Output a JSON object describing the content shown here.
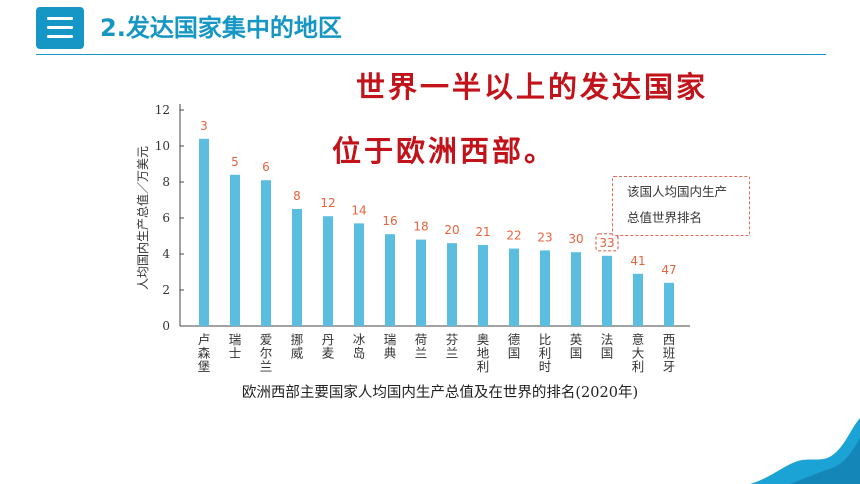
{
  "header": {
    "icon": "list-icon",
    "title": "2.发达国家集中的地区"
  },
  "callout": {
    "line1": "世界一半以上的发达国家",
    "line2": "位于欧洲西部。"
  },
  "caption": "欧洲西部主要国家人均国内生产总值及在世界的排名(2020年)",
  "annotation": {
    "line1": "该国人均国内生产",
    "line2": "总值世界排名"
  },
  "colors": {
    "bar": "#5bbde0",
    "rank_label": "#e8643c",
    "accent": "#1596c4",
    "callout": "#c2121a"
  },
  "chart_data": {
    "type": "bar",
    "ylabel": "人均国内生产总值／万美元",
    "ylim": [
      0,
      12
    ],
    "yticks": [
      0,
      2,
      4,
      6,
      8,
      10,
      12
    ],
    "categories": [
      "卢森堡",
      "瑞士",
      "爱尔兰",
      "挪威",
      "丹麦",
      "冰岛",
      "瑞典",
      "荷兰",
      "芬兰",
      "奥地利",
      "德国",
      "比利时",
      "英国",
      "法国",
      "意大利",
      "西班牙"
    ],
    "values": [
      10.4,
      8.4,
      8.1,
      6.5,
      6.1,
      5.7,
      5.1,
      4.8,
      4.6,
      4.5,
      4.3,
      4.2,
      4.1,
      3.9,
      2.9,
      2.4
    ],
    "ranks": [
      "3",
      "5",
      "6",
      "8",
      "12",
      "14",
      "16",
      "18",
      "20",
      "21",
      "22",
      "23",
      "30",
      "33",
      "41",
      "47"
    ],
    "highlight_index": 13
  }
}
